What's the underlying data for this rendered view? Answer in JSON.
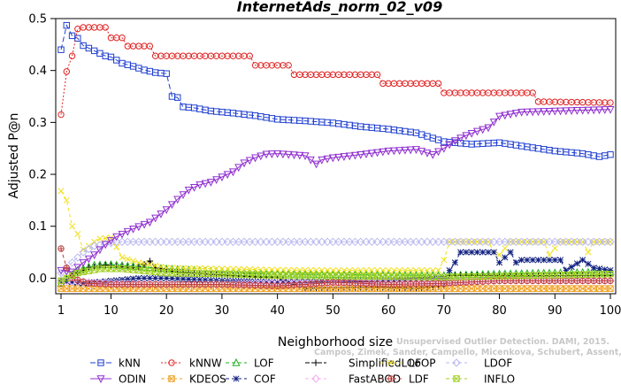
{
  "chart_data": {
    "type": "line",
    "title": "InternetAds_norm_02_v09",
    "xlabel": "Neighborhood size",
    "ylabel": "Adjusted P@n",
    "xlim": [
      1,
      100
    ],
    "ylim": [
      -0.03,
      0.5
    ],
    "xticks": [
      "1",
      "10",
      "20",
      "30",
      "40",
      "50",
      "60",
      "70",
      "80",
      "90",
      "100"
    ],
    "yticks": [
      "0.0",
      "0.1",
      "0.2",
      "0.3",
      "0.4",
      "0.5"
    ],
    "grid": false,
    "legend_position": "bottom",
    "watermark": [
      "Campos, Zimek, Sander, Campello, Micenkova, Schubert, Assent, Houle",
      "Unsupervised Outlier Detection. DAMI, 2015."
    ],
    "series": [
      {
        "name": "kNN",
        "color": "#1f3fd0",
        "marker": "square",
        "dash": "6,3",
        "points": [
          [
            1,
            0.44
          ],
          [
            2,
            0.487
          ],
          [
            3,
            0.467
          ],
          [
            4,
            0.462
          ],
          [
            5,
            0.448
          ],
          [
            6,
            0.443
          ],
          [
            7,
            0.438
          ],
          [
            8,
            0.433
          ],
          [
            9,
            0.428
          ],
          [
            10,
            0.426
          ],
          [
            12,
            0.414
          ],
          [
            14,
            0.408
          ],
          [
            16,
            0.401
          ],
          [
            18,
            0.396
          ],
          [
            20,
            0.394
          ],
          [
            21,
            0.35
          ],
          [
            22,
            0.348
          ],
          [
            23,
            0.33
          ],
          [
            25,
            0.328
          ],
          [
            28,
            0.322
          ],
          [
            32,
            0.318
          ],
          [
            36,
            0.313
          ],
          [
            40,
            0.306
          ],
          [
            45,
            0.303
          ],
          [
            50,
            0.299
          ],
          [
            55,
            0.292
          ],
          [
            60,
            0.287
          ],
          [
            65,
            0.28
          ],
          [
            70,
            0.263
          ],
          [
            75,
            0.258
          ],
          [
            80,
            0.261
          ],
          [
            85,
            0.253
          ],
          [
            90,
            0.245
          ],
          [
            95,
            0.24
          ],
          [
            98,
            0.234
          ],
          [
            100,
            0.238
          ]
        ]
      },
      {
        "name": "kNNW",
        "color": "#e02020",
        "marker": "circle",
        "dash": "2,2",
        "points": [
          [
            1,
            0.315
          ],
          [
            2,
            0.398
          ],
          [
            3,
            0.428
          ],
          [
            4,
            0.48
          ],
          [
            5,
            0.483
          ],
          [
            9,
            0.483
          ],
          [
            10,
            0.463
          ],
          [
            12,
            0.463
          ],
          [
            13,
            0.447
          ],
          [
            17,
            0.447
          ],
          [
            18,
            0.428
          ],
          [
            35,
            0.428
          ],
          [
            36,
            0.41
          ],
          [
            42,
            0.41
          ],
          [
            43,
            0.392
          ],
          [
            58,
            0.392
          ],
          [
            59,
            0.375
          ],
          [
            69,
            0.375
          ],
          [
            70,
            0.357
          ],
          [
            86,
            0.357
          ],
          [
            87,
            0.34
          ],
          [
            100,
            0.338
          ]
        ]
      },
      {
        "name": "LOF",
        "color": "#20b020",
        "marker": "triangle-up",
        "dash": "4,3",
        "points": [
          [
            1,
            -0.01
          ],
          [
            4,
            0.015
          ],
          [
            7,
            0.025
          ],
          [
            10,
            0.026
          ],
          [
            15,
            0.022
          ],
          [
            20,
            0.018
          ],
          [
            30,
            0.012
          ],
          [
            40,
            0.008
          ],
          [
            50,
            0.007
          ],
          [
            60,
            0.006
          ],
          [
            70,
            0.005
          ],
          [
            80,
            0.008
          ],
          [
            90,
            0.01
          ],
          [
            100,
            0.012
          ]
        ]
      },
      {
        "name": "SimplifiedLOF",
        "color": "#000000",
        "marker": "plus",
        "dash": "5,2",
        "points": [
          [
            1,
            -0.01
          ],
          [
            3,
            0.005
          ],
          [
            6,
            0.02
          ],
          [
            9,
            0.025
          ],
          [
            12,
            0.022
          ],
          [
            15,
            0.02
          ],
          [
            17,
            0.033
          ],
          [
            18,
            0.02
          ],
          [
            22,
            0.012
          ],
          [
            30,
            0.006
          ],
          [
            40,
            0.0
          ],
          [
            45,
            -0.02
          ],
          [
            50,
            -0.018
          ],
          [
            60,
            -0.018
          ],
          [
            65,
            -0.02
          ],
          [
            70,
            -0.015
          ],
          [
            71,
            0.005
          ],
          [
            80,
            0.005
          ],
          [
            90,
            0.005
          ],
          [
            100,
            0.005
          ]
        ]
      },
      {
        "name": "LoOP",
        "color": "#f0e020",
        "marker": "cross",
        "dash": "4,3",
        "points": [
          [
            1,
            0.168
          ],
          [
            2,
            0.15
          ],
          [
            3,
            0.1
          ],
          [
            4,
            0.085
          ],
          [
            5,
            0.055
          ],
          [
            6,
            0.062
          ],
          [
            7,
            0.07
          ],
          [
            8,
            0.076
          ],
          [
            10,
            0.078
          ],
          [
            11,
            0.06
          ],
          [
            12,
            0.04
          ],
          [
            15,
            0.03
          ],
          [
            20,
            0.02
          ],
          [
            30,
            0.018
          ],
          [
            40,
            0.016
          ],
          [
            50,
            0.015
          ],
          [
            60,
            0.015
          ],
          [
            69,
            0.015
          ],
          [
            70,
            0.035
          ],
          [
            71,
            0.07
          ],
          [
            78,
            0.07
          ],
          [
            79,
            0.05
          ],
          [
            80,
            0.045
          ],
          [
            82,
            0.07
          ],
          [
            88,
            0.07
          ],
          [
            89,
            0.045
          ],
          [
            91,
            0.07
          ],
          [
            95,
            0.07
          ],
          [
            96,
            0.05
          ],
          [
            97,
            0.07
          ],
          [
            100,
            0.07
          ]
        ]
      },
      {
        "name": "LDOF",
        "color": "#b8b8f0",
        "marker": "diamond",
        "dash": "4,3",
        "points": [
          [
            1,
            0.01
          ],
          [
            3,
            0.03
          ],
          [
            5,
            0.05
          ],
          [
            7,
            0.062
          ],
          [
            9,
            0.066
          ],
          [
            11,
            0.07
          ],
          [
            100,
            0.07
          ]
        ]
      },
      {
        "name": "ODIN",
        "color": "#9030d0",
        "marker": "triangle-down",
        "dash": "",
        "points": [
          [
            1,
            0.015
          ],
          [
            3,
            0.012
          ],
          [
            5,
            0.03
          ],
          [
            7,
            0.045
          ],
          [
            9,
            0.065
          ],
          [
            11,
            0.08
          ],
          [
            14,
            0.095
          ],
          [
            17,
            0.108
          ],
          [
            20,
            0.132
          ],
          [
            22,
            0.152
          ],
          [
            24,
            0.17
          ],
          [
            26,
            0.18
          ],
          [
            28,
            0.185
          ],
          [
            30,
            0.195
          ],
          [
            32,
            0.205
          ],
          [
            34,
            0.222
          ],
          [
            36,
            0.232
          ],
          [
            38,
            0.239
          ],
          [
            40,
            0.24
          ],
          [
            45,
            0.236
          ],
          [
            47,
            0.22
          ],
          [
            48,
            0.228
          ],
          [
            50,
            0.232
          ],
          [
            55,
            0.238
          ],
          [
            60,
            0.245
          ],
          [
            65,
            0.248
          ],
          [
            68,
            0.238
          ],
          [
            70,
            0.25
          ],
          [
            72,
            0.265
          ],
          [
            74,
            0.275
          ],
          [
            76,
            0.283
          ],
          [
            78,
            0.29
          ],
          [
            80,
            0.312
          ],
          [
            84,
            0.32
          ],
          [
            90,
            0.322
          ],
          [
            100,
            0.325
          ]
        ]
      },
      {
        "name": "KDEOS",
        "color": "#f0a020",
        "marker": "square-x",
        "dash": "4,3",
        "points": [
          [
            1,
            -0.02
          ],
          [
            100,
            -0.02
          ]
        ]
      },
      {
        "name": "COF",
        "color": "#102080",
        "marker": "asterisk",
        "dash": "4,3",
        "points": [
          [
            1,
            -0.005
          ],
          [
            5,
            -0.01
          ],
          [
            10,
            -0.005
          ],
          [
            15,
            0.0
          ],
          [
            20,
            0.0
          ],
          [
            30,
            -0.005
          ],
          [
            40,
            -0.008
          ],
          [
            50,
            -0.005
          ],
          [
            60,
            -0.005
          ],
          [
            70,
            0.0
          ],
          [
            72,
            0.03
          ],
          [
            73,
            0.05
          ],
          [
            79,
            0.05
          ],
          [
            80,
            0.03
          ],
          [
            82,
            0.05
          ],
          [
            83,
            0.03
          ],
          [
            84,
            0.035
          ],
          [
            91,
            0.035
          ],
          [
            92,
            0.015
          ],
          [
            95,
            0.035
          ],
          [
            97,
            0.02
          ],
          [
            100,
            0.015
          ]
        ]
      },
      {
        "name": "FastABOD",
        "color": "#f0b0f0",
        "marker": "diamond",
        "dash": "4,3",
        "points": [
          [
            1,
            -0.005
          ],
          [
            10,
            -0.01
          ],
          [
            20,
            -0.012
          ],
          [
            30,
            -0.012
          ],
          [
            40,
            -0.01
          ],
          [
            50,
            -0.01
          ],
          [
            60,
            -0.008
          ],
          [
            70,
            -0.008
          ],
          [
            80,
            -0.005
          ],
          [
            90,
            -0.005
          ],
          [
            100,
            -0.005
          ]
        ]
      },
      {
        "name": "LDF",
        "color": "#c04040",
        "marker": "circle-plus",
        "dash": "4,3",
        "points": [
          [
            1,
            0.057
          ],
          [
            2,
            0.02
          ],
          [
            3,
            0.0
          ],
          [
            6,
            -0.01
          ],
          [
            10,
            -0.012
          ],
          [
            20,
            -0.012
          ],
          [
            30,
            -0.012
          ],
          [
            40,
            -0.015
          ],
          [
            45,
            -0.012
          ],
          [
            50,
            -0.008
          ],
          [
            55,
            -0.01
          ],
          [
            60,
            -0.012
          ],
          [
            70,
            -0.01
          ],
          [
            80,
            -0.005
          ],
          [
            90,
            -0.005
          ],
          [
            100,
            -0.005
          ]
        ]
      },
      {
        "name": "INFLO",
        "color": "#a0d020",
        "marker": "square-x",
        "dash": "4,3",
        "points": [
          [
            1,
            -0.005
          ],
          [
            4,
            0.01
          ],
          [
            8,
            0.018
          ],
          [
            12,
            0.018
          ],
          [
            20,
            0.01
          ],
          [
            30,
            0.008
          ],
          [
            40,
            0.005
          ],
          [
            50,
            0.004
          ],
          [
            60,
            0.003
          ],
          [
            70,
            0.002
          ],
          [
            80,
            0.004
          ],
          [
            90,
            0.006
          ],
          [
            100,
            0.008
          ]
        ]
      }
    ]
  }
}
